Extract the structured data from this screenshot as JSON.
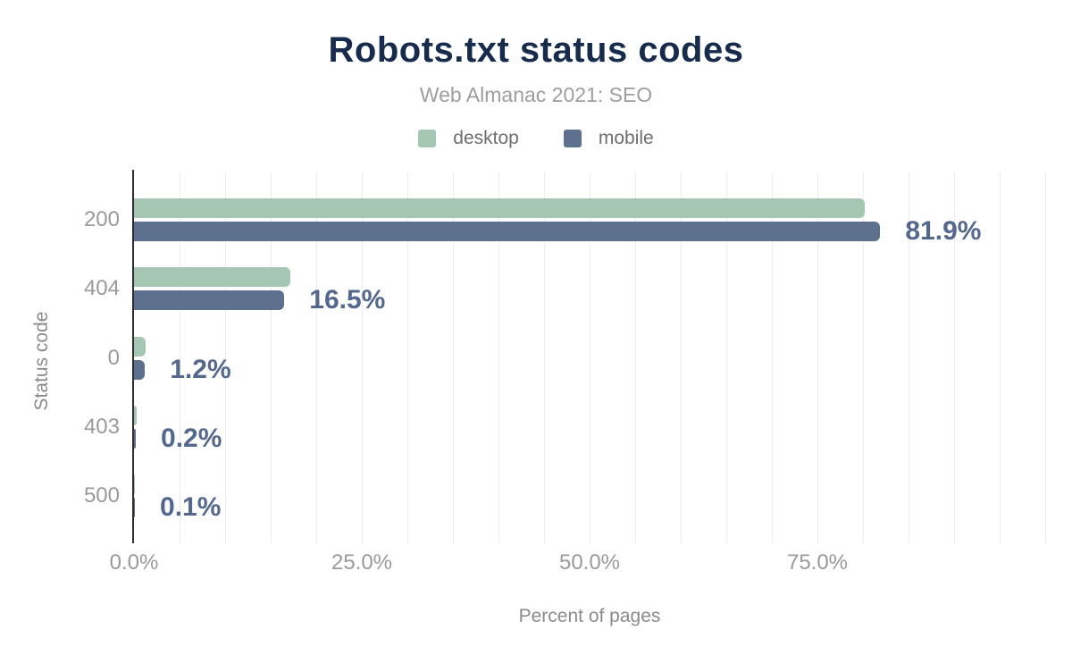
{
  "chart_data": {
    "type": "bar",
    "orientation": "horizontal",
    "title": "Robots.txt status codes",
    "subtitle": "Web Almanac 2021: SEO",
    "xlabel": "Percent of pages",
    "ylabel": "Status code",
    "categories": [
      "200",
      "404",
      "0",
      "403",
      "500"
    ],
    "series": [
      {
        "name": "desktop",
        "color": "#a4c6b3",
        "values": [
          80.2,
          17.2,
          1.3,
          0.3,
          0.1
        ]
      },
      {
        "name": "mobile",
        "color": "#5d708d",
        "values": [
          81.9,
          16.5,
          1.2,
          0.2,
          0.1
        ]
      }
    ],
    "data_labels": [
      "81.9%",
      "16.5%",
      "1.2%",
      "0.2%",
      "0.1%"
    ],
    "data_label_series": "mobile",
    "xlim": [
      0,
      100
    ],
    "x_ticks": [
      {
        "value": 0,
        "label": "0.0%"
      },
      {
        "value": 25,
        "label": "25.0%"
      },
      {
        "value": 50,
        "label": "50.0%"
      },
      {
        "value": 75,
        "label": "75.0%"
      }
    ],
    "grid": {
      "on": true,
      "step": 5,
      "color": "#ececec"
    },
    "legend_position": "top"
  }
}
